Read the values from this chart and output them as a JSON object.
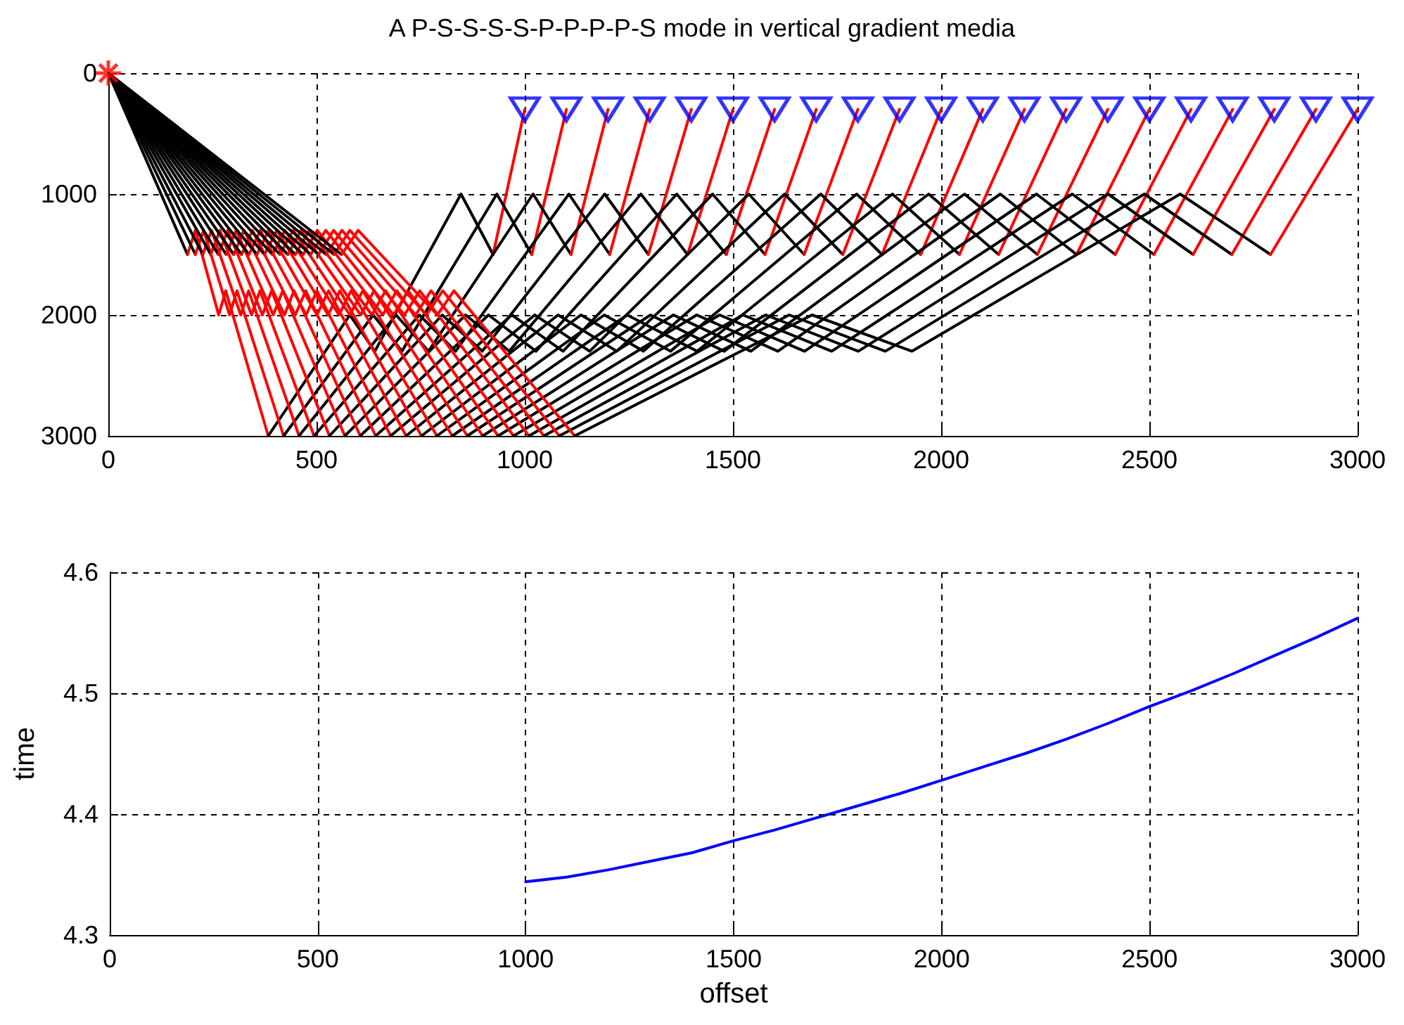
{
  "chart_data": [
    {
      "type": "line",
      "title": "A P-S-S-S-S-P-P-P-P-S mode in vertical gradient media",
      "xlim": [
        0,
        3000
      ],
      "xticks": [
        0,
        500,
        1000,
        1500,
        2000,
        2500,
        3000
      ],
      "ylim": [
        3000,
        0
      ],
      "yticks": [
        0,
        1000,
        2000,
        3000
      ],
      "grid": true,
      "marker": "none",
      "series": [
        {
          "color": "#000000",
          "x": [
            0,
            190
          ],
          "values": [
            0,
            1500
          ]
        },
        {
          "color": "#ff0000",
          "x": [
            190,
            209,
            265,
            282,
            384
          ],
          "values": [
            1500,
            1300,
            2000,
            1800,
            3000
          ]
        },
        {
          "color": "#000000",
          "x": [
            384,
            580,
            640,
            847,
            924
          ],
          "values": [
            3000,
            2000,
            2300,
            1000,
            1500
          ]
        },
        {
          "color": "#ff0000",
          "x": [
            924,
            1000
          ],
          "values": [
            1500,
            300
          ]
        },
        {
          "color": "#000000",
          "x": [
            0,
            209
          ],
          "values": [
            0,
            1500
          ]
        },
        {
          "color": "#ff0000",
          "x": [
            209,
            229,
            291,
            309,
            421
          ],
          "values": [
            1500,
            1300,
            2000,
            1800,
            3000
          ]
        },
        {
          "color": "#000000",
          "x": [
            421,
            636,
            705,
            933,
            1017
          ],
          "values": [
            3000,
            2000,
            2300,
            1000,
            1500
          ]
        },
        {
          "color": "#ff0000",
          "x": [
            1017,
            1100
          ],
          "values": [
            1500,
            300
          ]
        },
        {
          "color": "#000000",
          "x": [
            0,
            227
          ],
          "values": [
            0,
            1500
          ]
        },
        {
          "color": "#ff0000",
          "x": [
            227,
            248,
            318,
            337,
            458
          ],
          "values": [
            1500,
            1300,
            2000,
            1800,
            3000
          ]
        },
        {
          "color": "#000000",
          "x": [
            458,
            691,
            769,
            1020,
            1111
          ],
          "values": [
            3000,
            2000,
            2300,
            1000,
            1500
          ]
        },
        {
          "color": "#ff0000",
          "x": [
            1111,
            1200
          ],
          "values": [
            1500,
            300
          ]
        },
        {
          "color": "#000000",
          "x": [
            0,
            246
          ],
          "values": [
            0,
            1500
          ]
        },
        {
          "color": "#ff0000",
          "x": [
            246,
            268,
            344,
            364,
            494
          ],
          "values": [
            1500,
            1300,
            2000,
            1800,
            3000
          ]
        },
        {
          "color": "#000000",
          "x": [
            494,
            747,
            834,
            1106,
            1204
          ],
          "values": [
            3000,
            2000,
            2300,
            1000,
            1500
          ]
        },
        {
          "color": "#ff0000",
          "x": [
            1204,
            1300
          ],
          "values": [
            1500,
            300
          ]
        },
        {
          "color": "#000000",
          "x": [
            0,
            264
          ],
          "values": [
            0,
            1500
          ]
        },
        {
          "color": "#ff0000",
          "x": [
            264,
            287,
            370,
            392,
            531
          ],
          "values": [
            1500,
            1300,
            2000,
            1800,
            3000
          ]
        },
        {
          "color": "#000000",
          "x": [
            531,
            802,
            898,
            1192,
            1297
          ],
          "values": [
            3000,
            2000,
            2300,
            1000,
            1500
          ]
        },
        {
          "color": "#ff0000",
          "x": [
            1297,
            1400
          ],
          "values": [
            1500,
            300
          ]
        },
        {
          "color": "#000000",
          "x": [
            0,
            283
          ],
          "values": [
            0,
            1500
          ]
        },
        {
          "color": "#ff0000",
          "x": [
            283,
            307,
            396,
            419,
            568
          ],
          "values": [
            1500,
            1300,
            2000,
            1800,
            3000
          ]
        },
        {
          "color": "#000000",
          "x": [
            568,
            858,
            963,
            1279,
            1391
          ],
          "values": [
            3000,
            2000,
            2300,
            1000,
            1500
          ]
        },
        {
          "color": "#ff0000",
          "x": [
            1391,
            1500
          ],
          "values": [
            1500,
            300
          ]
        },
        {
          "color": "#000000",
          "x": [
            0,
            301
          ],
          "values": [
            0,
            1500
          ]
        },
        {
          "color": "#ff0000",
          "x": [
            301,
            326,
            423,
            446,
            605
          ],
          "values": [
            1500,
            1300,
            2000,
            1800,
            3000
          ]
        },
        {
          "color": "#000000",
          "x": [
            605,
            913,
            1027,
            1365,
            1484
          ],
          "values": [
            3000,
            2000,
            2300,
            1000,
            1500
          ]
        },
        {
          "color": "#ff0000",
          "x": [
            1484,
            1600
          ],
          "values": [
            1500,
            300
          ]
        },
        {
          "color": "#000000",
          "x": [
            0,
            320
          ],
          "values": [
            0,
            1500
          ]
        },
        {
          "color": "#ff0000",
          "x": [
            320,
            346,
            449,
            474,
            642
          ],
          "values": [
            1500,
            1300,
            2000,
            1800,
            3000
          ]
        },
        {
          "color": "#000000",
          "x": [
            642,
            969,
            1092,
            1451,
            1577
          ],
          "values": [
            3000,
            2000,
            2300,
            1000,
            1500
          ]
        },
        {
          "color": "#ff0000",
          "x": [
            1577,
            1700
          ],
          "values": [
            1500,
            300
          ]
        },
        {
          "color": "#000000",
          "x": [
            0,
            338
          ],
          "values": [
            0,
            1500
          ]
        },
        {
          "color": "#ff0000",
          "x": [
            338,
            365,
            475,
            501,
            678
          ],
          "values": [
            1500,
            1300,
            2000,
            1800,
            3000
          ]
        },
        {
          "color": "#000000",
          "x": [
            678,
            1024,
            1156,
            1538,
            1671
          ],
          "values": [
            3000,
            2000,
            2300,
            1000,
            1500
          ]
        },
        {
          "color": "#ff0000",
          "x": [
            1671,
            1800
          ],
          "values": [
            1500,
            300
          ]
        },
        {
          "color": "#000000",
          "x": [
            0,
            357
          ],
          "values": [
            0,
            1500
          ]
        },
        {
          "color": "#ff0000",
          "x": [
            357,
            385,
            501,
            529,
            715
          ],
          "values": [
            1500,
            1300,
            2000,
            1800,
            3000
          ]
        },
        {
          "color": "#000000",
          "x": [
            715,
            1080,
            1221,
            1624,
            1764
          ],
          "values": [
            3000,
            2000,
            2300,
            1000,
            1500
          ]
        },
        {
          "color": "#ff0000",
          "x": [
            1764,
            1900
          ],
          "values": [
            1500,
            300
          ]
        },
        {
          "color": "#000000",
          "x": [
            0,
            375
          ],
          "values": [
            0,
            1500
          ]
        },
        {
          "color": "#ff0000",
          "x": [
            375,
            405,
            528,
            556,
            752
          ],
          "values": [
            1500,
            1300,
            2000,
            1800,
            3000
          ]
        },
        {
          "color": "#000000",
          "x": [
            752,
            1135,
            1285,
            1711,
            1858
          ],
          "values": [
            3000,
            2000,
            2300,
            1000,
            1500
          ]
        },
        {
          "color": "#ff0000",
          "x": [
            1858,
            2000
          ],
          "values": [
            1500,
            300
          ]
        },
        {
          "color": "#000000",
          "x": [
            0,
            394
          ],
          "values": [
            0,
            1500
          ]
        },
        {
          "color": "#ff0000",
          "x": [
            394,
            424,
            554,
            583,
            789
          ],
          "values": [
            1500,
            1300,
            2000,
            1800,
            3000
          ]
        },
        {
          "color": "#000000",
          "x": [
            789,
            1191,
            1350,
            1797,
            1951
          ],
          "values": [
            3000,
            2000,
            2300,
            1000,
            1500
          ]
        },
        {
          "color": "#ff0000",
          "x": [
            1951,
            2100
          ],
          "values": [
            1500,
            300
          ]
        },
        {
          "color": "#000000",
          "x": [
            0,
            412
          ],
          "values": [
            0,
            1500
          ]
        },
        {
          "color": "#ff0000",
          "x": [
            412,
            444,
            580,
            611,
            826
          ],
          "values": [
            1500,
            1300,
            2000,
            1800,
            3000
          ]
        },
        {
          "color": "#000000",
          "x": [
            826,
            1246,
            1414,
            1883,
            2044
          ],
          "values": [
            3000,
            2000,
            2300,
            1000,
            1500
          ]
        },
        {
          "color": "#ff0000",
          "x": [
            2044,
            2200
          ],
          "values": [
            1500,
            300
          ]
        },
        {
          "color": "#000000",
          "x": [
            0,
            431
          ],
          "values": [
            0,
            1500
          ]
        },
        {
          "color": "#ff0000",
          "x": [
            431,
            463,
            606,
            638,
            862
          ],
          "values": [
            1500,
            1300,
            2000,
            1800,
            3000
          ]
        },
        {
          "color": "#000000",
          "x": [
            862,
            1302,
            1479,
            1970,
            2138
          ],
          "values": [
            3000,
            2000,
            2300,
            1000,
            1500
          ]
        },
        {
          "color": "#ff0000",
          "x": [
            2138,
            2300
          ],
          "values": [
            1500,
            300
          ]
        },
        {
          "color": "#000000",
          "x": [
            0,
            449
          ],
          "values": [
            0,
            1500
          ]
        },
        {
          "color": "#ff0000",
          "x": [
            449,
            483,
            633,
            666,
            899
          ],
          "values": [
            1500,
            1300,
            2000,
            1800,
            3000
          ]
        },
        {
          "color": "#000000",
          "x": [
            899,
            1357,
            1543,
            2056,
            2231
          ],
          "values": [
            3000,
            2000,
            2300,
            1000,
            1500
          ]
        },
        {
          "color": "#ff0000",
          "x": [
            2231,
            2400
          ],
          "values": [
            1500,
            300
          ]
        },
        {
          "color": "#000000",
          "x": [
            0,
            468
          ],
          "values": [
            0,
            1500
          ]
        },
        {
          "color": "#ff0000",
          "x": [
            468,
            502,
            659,
            693,
            936
          ],
          "values": [
            1500,
            1300,
            2000,
            1800,
            3000
          ]
        },
        {
          "color": "#000000",
          "x": [
            936,
            1413,
            1608,
            2142,
            2325
          ],
          "values": [
            3000,
            2000,
            2300,
            1000,
            1500
          ]
        },
        {
          "color": "#ff0000",
          "x": [
            2325,
            2500
          ],
          "values": [
            1500,
            300
          ]
        },
        {
          "color": "#000000",
          "x": [
            0,
            486
          ],
          "values": [
            0,
            1500
          ]
        },
        {
          "color": "#ff0000",
          "x": [
            486,
            522,
            685,
            720,
            973
          ],
          "values": [
            1500,
            1300,
            2000,
            1800,
            3000
          ]
        },
        {
          "color": "#000000",
          "x": [
            973,
            1468,
            1672,
            2229,
            2418
          ],
          "values": [
            3000,
            2000,
            2300,
            1000,
            1500
          ]
        },
        {
          "color": "#ff0000",
          "x": [
            2418,
            2600
          ],
          "values": [
            1500,
            300
          ]
        },
        {
          "color": "#000000",
          "x": [
            0,
            505
          ],
          "values": [
            0,
            1500
          ]
        },
        {
          "color": "#ff0000",
          "x": [
            505,
            541,
            711,
            748,
            1010
          ],
          "values": [
            1500,
            1300,
            2000,
            1800,
            3000
          ]
        },
        {
          "color": "#000000",
          "x": [
            1010,
            1524,
            1737,
            2315,
            2511
          ],
          "values": [
            3000,
            2000,
            2300,
            1000,
            1500
          ]
        },
        {
          "color": "#ff0000",
          "x": [
            2511,
            2700
          ],
          "values": [
            1500,
            300
          ]
        },
        {
          "color": "#000000",
          "x": [
            0,
            523
          ],
          "values": [
            0,
            1500
          ]
        },
        {
          "color": "#ff0000",
          "x": [
            523,
            561,
            738,
            775,
            1046
          ],
          "values": [
            1500,
            1300,
            2000,
            1800,
            3000
          ]
        },
        {
          "color": "#000000",
          "x": [
            1046,
            1579,
            1801,
            2401,
            2605
          ],
          "values": [
            3000,
            2000,
            2300,
            1000,
            1500
          ]
        },
        {
          "color": "#ff0000",
          "x": [
            2605,
            2800
          ],
          "values": [
            1500,
            300
          ]
        },
        {
          "color": "#000000",
          "x": [
            0,
            542
          ],
          "values": [
            0,
            1500
          ]
        },
        {
          "color": "#ff0000",
          "x": [
            542,
            580,
            764,
            803,
            1083
          ],
          "values": [
            1500,
            1300,
            2000,
            1800,
            3000
          ]
        },
        {
          "color": "#000000",
          "x": [
            1083,
            1635,
            1866,
            2488,
            2698
          ],
          "values": [
            3000,
            2000,
            2300,
            1000,
            1500
          ]
        },
        {
          "color": "#ff0000",
          "x": [
            2698,
            2900
          ],
          "values": [
            1500,
            300
          ]
        },
        {
          "color": "#000000",
          "x": [
            0,
            560
          ],
          "values": [
            0,
            1500
          ]
        },
        {
          "color": "#ff0000",
          "x": [
            560,
            600,
            790,
            830,
            1120
          ],
          "values": [
            1500,
            1300,
            2000,
            1800,
            3000
          ]
        },
        {
          "color": "#000000",
          "x": [
            1120,
            1690,
            1930,
            2574,
            2791
          ],
          "values": [
            3000,
            2000,
            2300,
            1000,
            1500
          ]
        },
        {
          "color": "#ff0000",
          "x": [
            2791,
            3000
          ],
          "values": [
            1500,
            300
          ]
        },
        {
          "type": "scatter",
          "marker": "cross",
          "color": "#ff0000",
          "x": [
            0
          ],
          "values": [
            0
          ]
        },
        {
          "type": "scatter",
          "marker": "triangle",
          "color": "#0000ff",
          "x": [
            1000,
            1100,
            1200,
            1300,
            1400,
            1500,
            1600,
            1700,
            1800,
            1900,
            2000,
            2100,
            2200,
            2300,
            2400,
            2500,
            2600,
            2700,
            2800,
            2900,
            3000
          ],
          "values": [
            300,
            300,
            300,
            300,
            300,
            300,
            300,
            300,
            300,
            300,
            300,
            300,
            300,
            300,
            300,
            300,
            300,
            300,
            300,
            300,
            300
          ]
        }
      ]
    },
    {
      "type": "line",
      "xlabel": "offset",
      "ylabel": "time",
      "xlim": [
        0,
        3000
      ],
      "xticks": [
        0,
        500,
        1000,
        1500,
        2000,
        2500,
        3000
      ],
      "ylim": [
        4.3,
        4.6
      ],
      "yticks": [
        4.3,
        4.4,
        4.5,
        4.6
      ],
      "grid": true,
      "marker": "none",
      "series": [
        {
          "color": "#0000ff",
          "x": [
            1000,
            1100,
            1200,
            1300,
            1400,
            1500,
            1600,
            1700,
            1800,
            1900,
            2000,
            2100,
            2200,
            2300,
            2400,
            2500,
            2600,
            2700,
            2800,
            2900,
            3000
          ],
          "values": [
            4.344,
            4.348,
            4.354,
            4.361,
            4.368,
            4.378,
            4.387,
            4.397,
            4.407,
            4.417,
            4.428,
            4.439,
            4.45,
            4.462,
            4.475,
            4.489,
            4.502,
            4.516,
            4.531,
            4.546,
            4.562
          ]
        }
      ]
    }
  ]
}
